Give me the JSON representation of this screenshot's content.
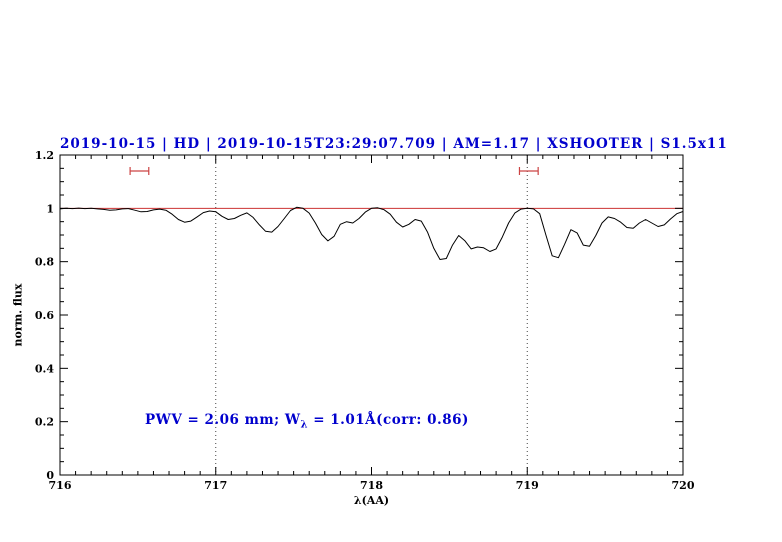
{
  "colors": {
    "accent_blue": "#0000cd",
    "continuum_red": "#cc3333",
    "marker_red": "#cc4444",
    "spectrum_black": "#000000",
    "frame_black": "#000000",
    "guide_dot": "#444444",
    "background": "#ffffff"
  },
  "chart_data": {
    "type": "line",
    "title": "2019-10-15 | HD | 2019-10-15T23:29:07.709 | AM=1.17 | XSHOOTER | S1.5x11",
    "xlabel": "λ(AA)",
    "ylabel": "norm. flux",
    "xlim": [
      716,
      720
    ],
    "ylim": [
      0,
      1.2
    ],
    "x_ticks": [
      716,
      717,
      718,
      719,
      720
    ],
    "x_tick_labels": [
      "716",
      "717",
      "718",
      "719",
      "720"
    ],
    "x_minor_step": 0.1,
    "y_ticks": [
      0,
      0.2,
      0.4,
      0.6,
      0.8,
      1,
      1.2
    ],
    "y_tick_labels": [
      "0",
      "0.2",
      "0.4",
      "0.6",
      "0.8",
      "1",
      "1.2"
    ],
    "y_minor_step": 0.05,
    "grid": false,
    "legend": "none",
    "guides_x": [
      717,
      719
    ],
    "continuum": {
      "y": 1.0
    },
    "range_markers": [
      {
        "x1": 716.45,
        "x2": 716.57,
        "y": 1.14
      },
      {
        "x1": 718.95,
        "x2": 719.07,
        "y": 1.14
      }
    ],
    "annotation": {
      "part1": "PWV = 2.06 mm; W",
      "sub": "λ",
      "part2": " = 1.01Å(corr: 0.86)"
    },
    "series": [
      {
        "name": "normalized-telluric-spectrum",
        "points": [
          [
            716.0,
            0.998
          ],
          [
            716.04,
            1.0
          ],
          [
            716.08,
            0.999
          ],
          [
            716.12,
            1.001
          ],
          [
            716.16,
            0.999
          ],
          [
            716.2,
            1.0
          ],
          [
            716.24,
            0.998
          ],
          [
            716.28,
            0.996
          ],
          [
            716.32,
            0.993
          ],
          [
            716.36,
            0.994
          ],
          [
            716.4,
            0.998
          ],
          [
            716.44,
            0.999
          ],
          [
            716.48,
            0.993
          ],
          [
            716.52,
            0.987
          ],
          [
            716.56,
            0.988
          ],
          [
            716.6,
            0.994
          ],
          [
            716.64,
            0.997
          ],
          [
            716.68,
            0.993
          ],
          [
            716.72,
            0.978
          ],
          [
            716.76,
            0.958
          ],
          [
            716.8,
            0.948
          ],
          [
            716.84,
            0.952
          ],
          [
            716.88,
            0.968
          ],
          [
            716.92,
            0.984
          ],
          [
            716.96,
            0.99
          ],
          [
            717.0,
            0.987
          ],
          [
            717.04,
            0.97
          ],
          [
            717.08,
            0.958
          ],
          [
            717.12,
            0.962
          ],
          [
            717.16,
            0.974
          ],
          [
            717.2,
            0.983
          ],
          [
            717.24,
            0.966
          ],
          [
            717.28,
            0.938
          ],
          [
            717.32,
            0.914
          ],
          [
            717.36,
            0.911
          ],
          [
            717.4,
            0.932
          ],
          [
            717.44,
            0.962
          ],
          [
            717.48,
            0.992
          ],
          [
            717.52,
            1.004
          ],
          [
            717.56,
            1.0
          ],
          [
            717.6,
            0.982
          ],
          [
            717.64,
            0.945
          ],
          [
            717.68,
            0.902
          ],
          [
            717.72,
            0.878
          ],
          [
            717.76,
            0.895
          ],
          [
            717.8,
            0.94
          ],
          [
            717.84,
            0.95
          ],
          [
            717.88,
            0.945
          ],
          [
            717.92,
            0.962
          ],
          [
            717.96,
            0.986
          ],
          [
            718.0,
            1.0
          ],
          [
            718.04,
            1.002
          ],
          [
            718.08,
            0.995
          ],
          [
            718.12,
            0.978
          ],
          [
            718.16,
            0.948
          ],
          [
            718.2,
            0.93
          ],
          [
            718.24,
            0.94
          ],
          [
            718.28,
            0.958
          ],
          [
            718.32,
            0.952
          ],
          [
            718.36,
            0.91
          ],
          [
            718.4,
            0.85
          ],
          [
            718.44,
            0.808
          ],
          [
            718.48,
            0.812
          ],
          [
            718.52,
            0.862
          ],
          [
            718.56,
            0.898
          ],
          [
            718.6,
            0.878
          ],
          [
            718.64,
            0.848
          ],
          [
            718.68,
            0.855
          ],
          [
            718.72,
            0.852
          ],
          [
            718.76,
            0.838
          ],
          [
            718.8,
            0.848
          ],
          [
            718.84,
            0.892
          ],
          [
            718.88,
            0.945
          ],
          [
            718.92,
            0.982
          ],
          [
            718.96,
            0.997
          ],
          [
            719.0,
            1.0
          ],
          [
            719.04,
            0.998
          ],
          [
            719.08,
            0.98
          ],
          [
            719.12,
            0.9
          ],
          [
            719.16,
            0.822
          ],
          [
            719.2,
            0.815
          ],
          [
            719.24,
            0.865
          ],
          [
            719.28,
            0.92
          ],
          [
            719.32,
            0.908
          ],
          [
            719.36,
            0.862
          ],
          [
            719.4,
            0.858
          ],
          [
            719.44,
            0.898
          ],
          [
            719.48,
            0.945
          ],
          [
            719.52,
            0.968
          ],
          [
            719.56,
            0.962
          ],
          [
            719.6,
            0.948
          ],
          [
            719.64,
            0.928
          ],
          [
            719.68,
            0.925
          ],
          [
            719.72,
            0.945
          ],
          [
            719.76,
            0.958
          ],
          [
            719.8,
            0.945
          ],
          [
            719.84,
            0.932
          ],
          [
            719.88,
            0.938
          ],
          [
            719.92,
            0.96
          ],
          [
            719.96,
            0.98
          ],
          [
            720.0,
            0.988
          ]
        ]
      }
    ]
  }
}
